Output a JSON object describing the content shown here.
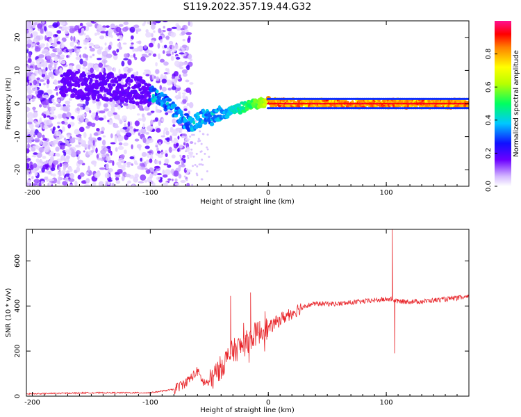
{
  "title": "S119.2022.357.19.44.G32",
  "colors": {
    "line": "#e8262b",
    "axis": "#000000"
  },
  "chart_data": [
    {
      "type": "heatmap",
      "name": "spectrogram",
      "xlabel": "Height of straight line (km)",
      "ylabel": "Frequency (Hz)",
      "xlim": [
        -205,
        170
      ],
      "ylim": [
        -25,
        25
      ],
      "xticks": [
        -200,
        -100,
        0,
        100
      ],
      "yticks": [
        -20,
        -10,
        0,
        10,
        20
      ],
      "xtick_labels": [
        "-200",
        "-100",
        "0",
        "100"
      ],
      "ytick_labels": [
        "-20",
        "-10",
        "0",
        "10",
        "20"
      ],
      "ridge": {
        "x": [
          -170,
          -150,
          -130,
          -110,
          -100,
          -90,
          -80,
          -72,
          -65,
          -60,
          -55,
          -50,
          -45,
          -40,
          -30,
          -20,
          -10,
          0,
          20,
          60,
          100,
          140,
          170
        ],
        "y": [
          6,
          5,
          5,
          4,
          3,
          1,
          -2,
          -5,
          -6,
          -5,
          -4,
          -4.5,
          -4,
          -3,
          -2,
          -1,
          0,
          0.5,
          0,
          0,
          0,
          0,
          0
        ]
      },
      "colorbar": {
        "label": "Normalized spectral amplitude",
        "range": [
          0,
          1
        ],
        "ticks": [
          0.0,
          0.2,
          0.4,
          0.6,
          0.8
        ],
        "tick_labels": [
          "0.0",
          "0.2",
          "0.4",
          "0.6",
          "0.8"
        ]
      }
    },
    {
      "type": "line",
      "name": "snr",
      "xlabel": "Height of straight line (km)",
      "ylabel": "SNR (10 * v/v)",
      "xlim": [
        -205,
        170
      ],
      "ylim": [
        0,
        740
      ],
      "xticks": [
        -200,
        -100,
        0,
        100
      ],
      "yticks": [
        0,
        200,
        400,
        600
      ],
      "xtick_labels": [
        "-200",
        "-100",
        "0",
        "100"
      ],
      "ytick_labels": [
        "0",
        "200",
        "400",
        "600"
      ],
      "envelope": {
        "x": [
          -205,
          -150,
          -100,
          -80,
          -70,
          -60,
          -55,
          -50,
          -40,
          -30,
          -20,
          -10,
          0,
          10,
          20,
          30,
          40,
          60,
          80,
          100,
          105,
          110,
          130,
          150,
          170
        ],
        "y": [
          10,
          15,
          15,
          30,
          60,
          110,
          60,
          60,
          130,
          200,
          230,
          280,
          300,
          340,
          370,
          400,
          410,
          410,
          420,
          430,
          430,
          420,
          420,
          430,
          440
        ]
      },
      "spikes": [
        {
          "x": 105,
          "y": 740
        },
        {
          "x": 107,
          "y": 190
        },
        {
          "x": -15,
          "y": 460
        },
        {
          "x": -32,
          "y": 445
        }
      ]
    }
  ]
}
